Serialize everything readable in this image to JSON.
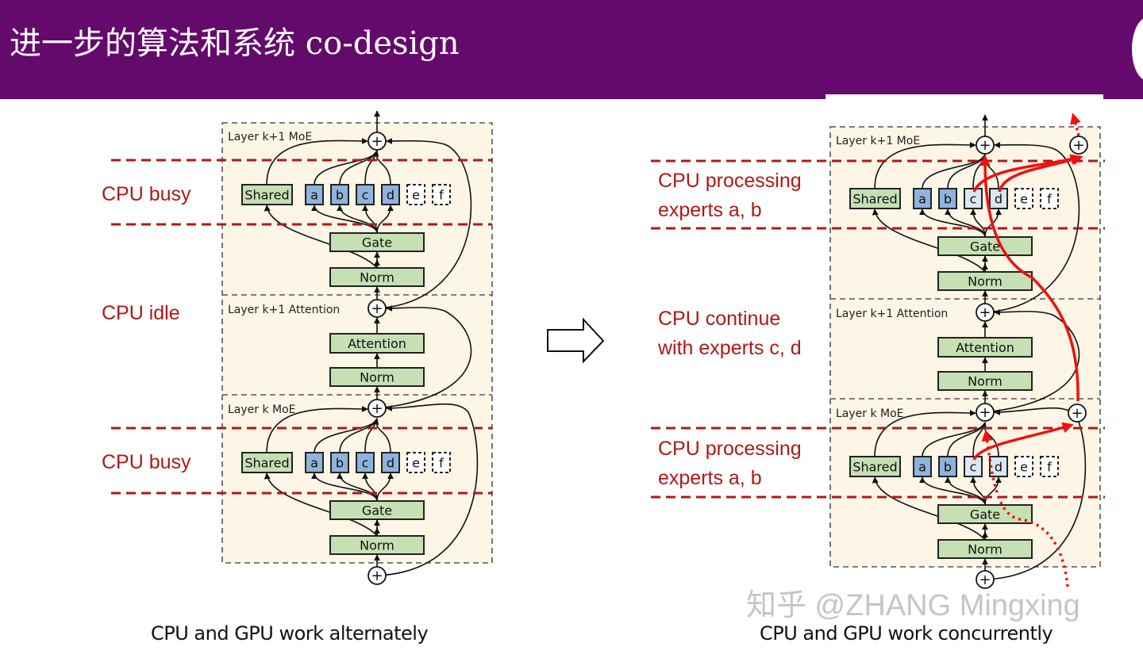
{
  "slide": {
    "title": "进一步的算法和系统 co-design",
    "colors": {
      "title_bar": "#640a6c",
      "annotation": "#b01818",
      "expert_active": "#8fb3dc",
      "expert_light": "#dbe7f5",
      "block": "#c6e0b4",
      "panel": "#fdf6e6",
      "flow": "#ee1111"
    }
  },
  "diagram": {
    "layer_labels": [
      "Layer k+1 MoE",
      "Layer k+1 Attention",
      "Layer k MoE"
    ],
    "shared": "Shared",
    "experts": [
      "a",
      "b",
      "c",
      "d",
      "e",
      "f"
    ],
    "gate": "Gate",
    "norm": "Norm",
    "attention": "Attention",
    "plus": "+"
  },
  "left": {
    "annotations": [
      "CPU busy",
      "CPU idle",
      "CPU busy"
    ],
    "caption": "CPU and GPU work alternately"
  },
  "right": {
    "annotations": [
      [
        "CPU processing",
        "experts a, b"
      ],
      [
        "CPU continue",
        "with experts c, d"
      ],
      [
        "CPU processing",
        "experts a, b"
      ]
    ],
    "caption": "CPU and GPU work concurrently"
  },
  "transition_icon": "outline-right-arrow-icon",
  "watermark": "知乎 @ZHANG Mingxing"
}
